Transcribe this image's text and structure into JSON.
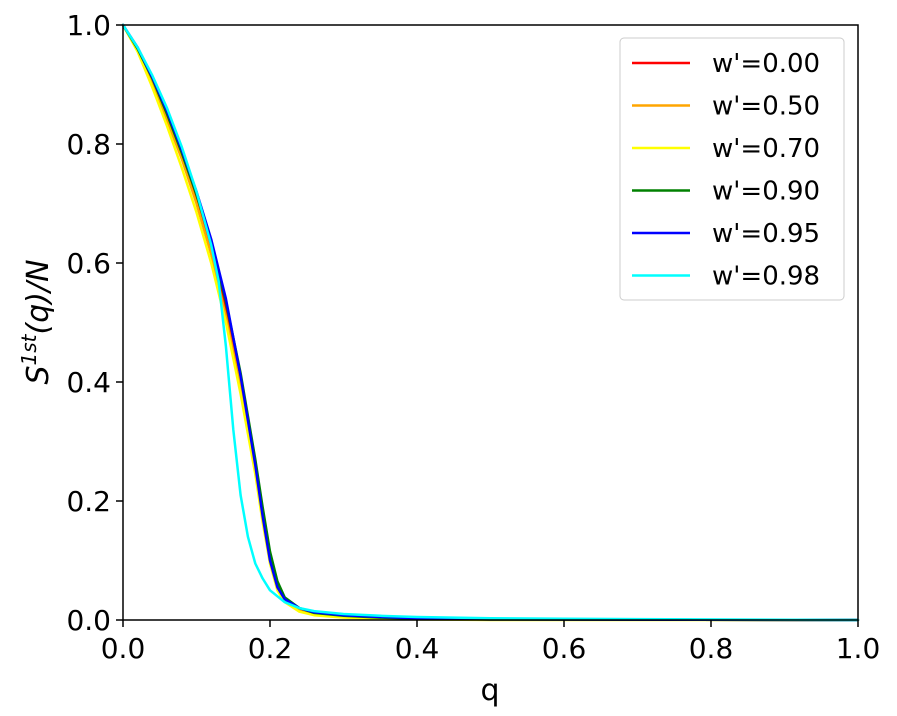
{
  "chart_data": {
    "type": "line",
    "xlabel": "q",
    "ylabel": "S",
    "ylabel_sup": "1st",
    "ylabel_suffix": "(q)/N",
    "xlim": [
      0.0,
      1.0
    ],
    "ylim": [
      0.0,
      1.0
    ],
    "xticks": [
      "0.0",
      "0.2",
      "0.4",
      "0.6",
      "0.8",
      "1.0"
    ],
    "yticks": [
      "0.0",
      "0.2",
      "0.4",
      "0.6",
      "0.8",
      "1.0"
    ],
    "grid": false,
    "legend_position": "top-right",
    "series": [
      {
        "name": "w'=0.00",
        "color": "#ff0000",
        "x": [
          0,
          0.02,
          0.04,
          0.06,
          0.08,
          0.1,
          0.12,
          0.14,
          0.16,
          0.18,
          0.19,
          0.2,
          0.21,
          0.22,
          0.24,
          0.26,
          0.3,
          0.35,
          0.4,
          0.5,
          1.0
        ],
        "y": [
          1.0,
          0.96,
          0.905,
          0.845,
          0.78,
          0.71,
          0.625,
          0.52,
          0.4,
          0.26,
          0.18,
          0.11,
          0.06,
          0.035,
          0.018,
          0.011,
          0.006,
          0.003,
          0.002,
          0.001,
          0.0
        ]
      },
      {
        "name": "w'=0.50",
        "color": "#ffa500",
        "x": [
          0,
          0.02,
          0.04,
          0.06,
          0.08,
          0.1,
          0.12,
          0.14,
          0.16,
          0.18,
          0.19,
          0.2,
          0.21,
          0.22,
          0.24,
          0.26,
          0.3,
          0.35,
          0.4,
          0.5,
          1.0
        ],
        "y": [
          1.0,
          0.957,
          0.9,
          0.84,
          0.775,
          0.7,
          0.615,
          0.51,
          0.39,
          0.25,
          0.17,
          0.1,
          0.055,
          0.033,
          0.017,
          0.01,
          0.005,
          0.003,
          0.002,
          0.001,
          0.0
        ]
      },
      {
        "name": "w'=0.70",
        "color": "#ffff00",
        "x": [
          0,
          0.02,
          0.04,
          0.06,
          0.08,
          0.1,
          0.12,
          0.14,
          0.16,
          0.18,
          0.19,
          0.2,
          0.21,
          0.22,
          0.24,
          0.26,
          0.3,
          0.35,
          0.4,
          0.5,
          1.0
        ],
        "y": [
          1.0,
          0.955,
          0.895,
          0.83,
          0.76,
          0.685,
          0.6,
          0.5,
          0.38,
          0.245,
          0.165,
          0.095,
          0.05,
          0.03,
          0.014,
          0.008,
          0.004,
          0.002,
          0.001,
          0.0,
          0.0
        ]
      },
      {
        "name": "w'=0.90",
        "color": "#008000",
        "x": [
          0,
          0.02,
          0.04,
          0.06,
          0.08,
          0.1,
          0.12,
          0.14,
          0.16,
          0.18,
          0.19,
          0.2,
          0.21,
          0.22,
          0.24,
          0.26,
          0.3,
          0.35,
          0.4,
          0.5,
          1.0
        ],
        "y": [
          1.0,
          0.96,
          0.91,
          0.85,
          0.785,
          0.715,
          0.635,
          0.535,
          0.415,
          0.27,
          0.19,
          0.115,
          0.065,
          0.038,
          0.02,
          0.012,
          0.007,
          0.004,
          0.002,
          0.001,
          0.0
        ]
      },
      {
        "name": "w'=0.95",
        "color": "#0000ff",
        "x": [
          0,
          0.02,
          0.04,
          0.06,
          0.08,
          0.1,
          0.12,
          0.14,
          0.16,
          0.18,
          0.19,
          0.2,
          0.21,
          0.22,
          0.24,
          0.26,
          0.3,
          0.35,
          0.4,
          0.5,
          1.0
        ],
        "y": [
          1.0,
          0.962,
          0.912,
          0.855,
          0.79,
          0.72,
          0.64,
          0.54,
          0.41,
          0.26,
          0.175,
          0.1,
          0.055,
          0.035,
          0.02,
          0.013,
          0.008,
          0.005,
          0.003,
          0.001,
          0.0
        ]
      },
      {
        "name": "w'=0.98",
        "color": "#00ffff",
        "x": [
          0,
          0.02,
          0.04,
          0.06,
          0.08,
          0.1,
          0.12,
          0.13,
          0.14,
          0.15,
          0.16,
          0.17,
          0.18,
          0.19,
          0.2,
          0.22,
          0.24,
          0.26,
          0.3,
          0.35,
          0.4,
          0.5,
          0.6,
          1.0
        ],
        "y": [
          1.0,
          0.962,
          0.915,
          0.86,
          0.795,
          0.72,
          0.63,
          0.57,
          0.46,
          0.32,
          0.21,
          0.14,
          0.095,
          0.07,
          0.05,
          0.03,
          0.02,
          0.015,
          0.01,
          0.007,
          0.005,
          0.003,
          0.002,
          0.0
        ]
      }
    ]
  }
}
